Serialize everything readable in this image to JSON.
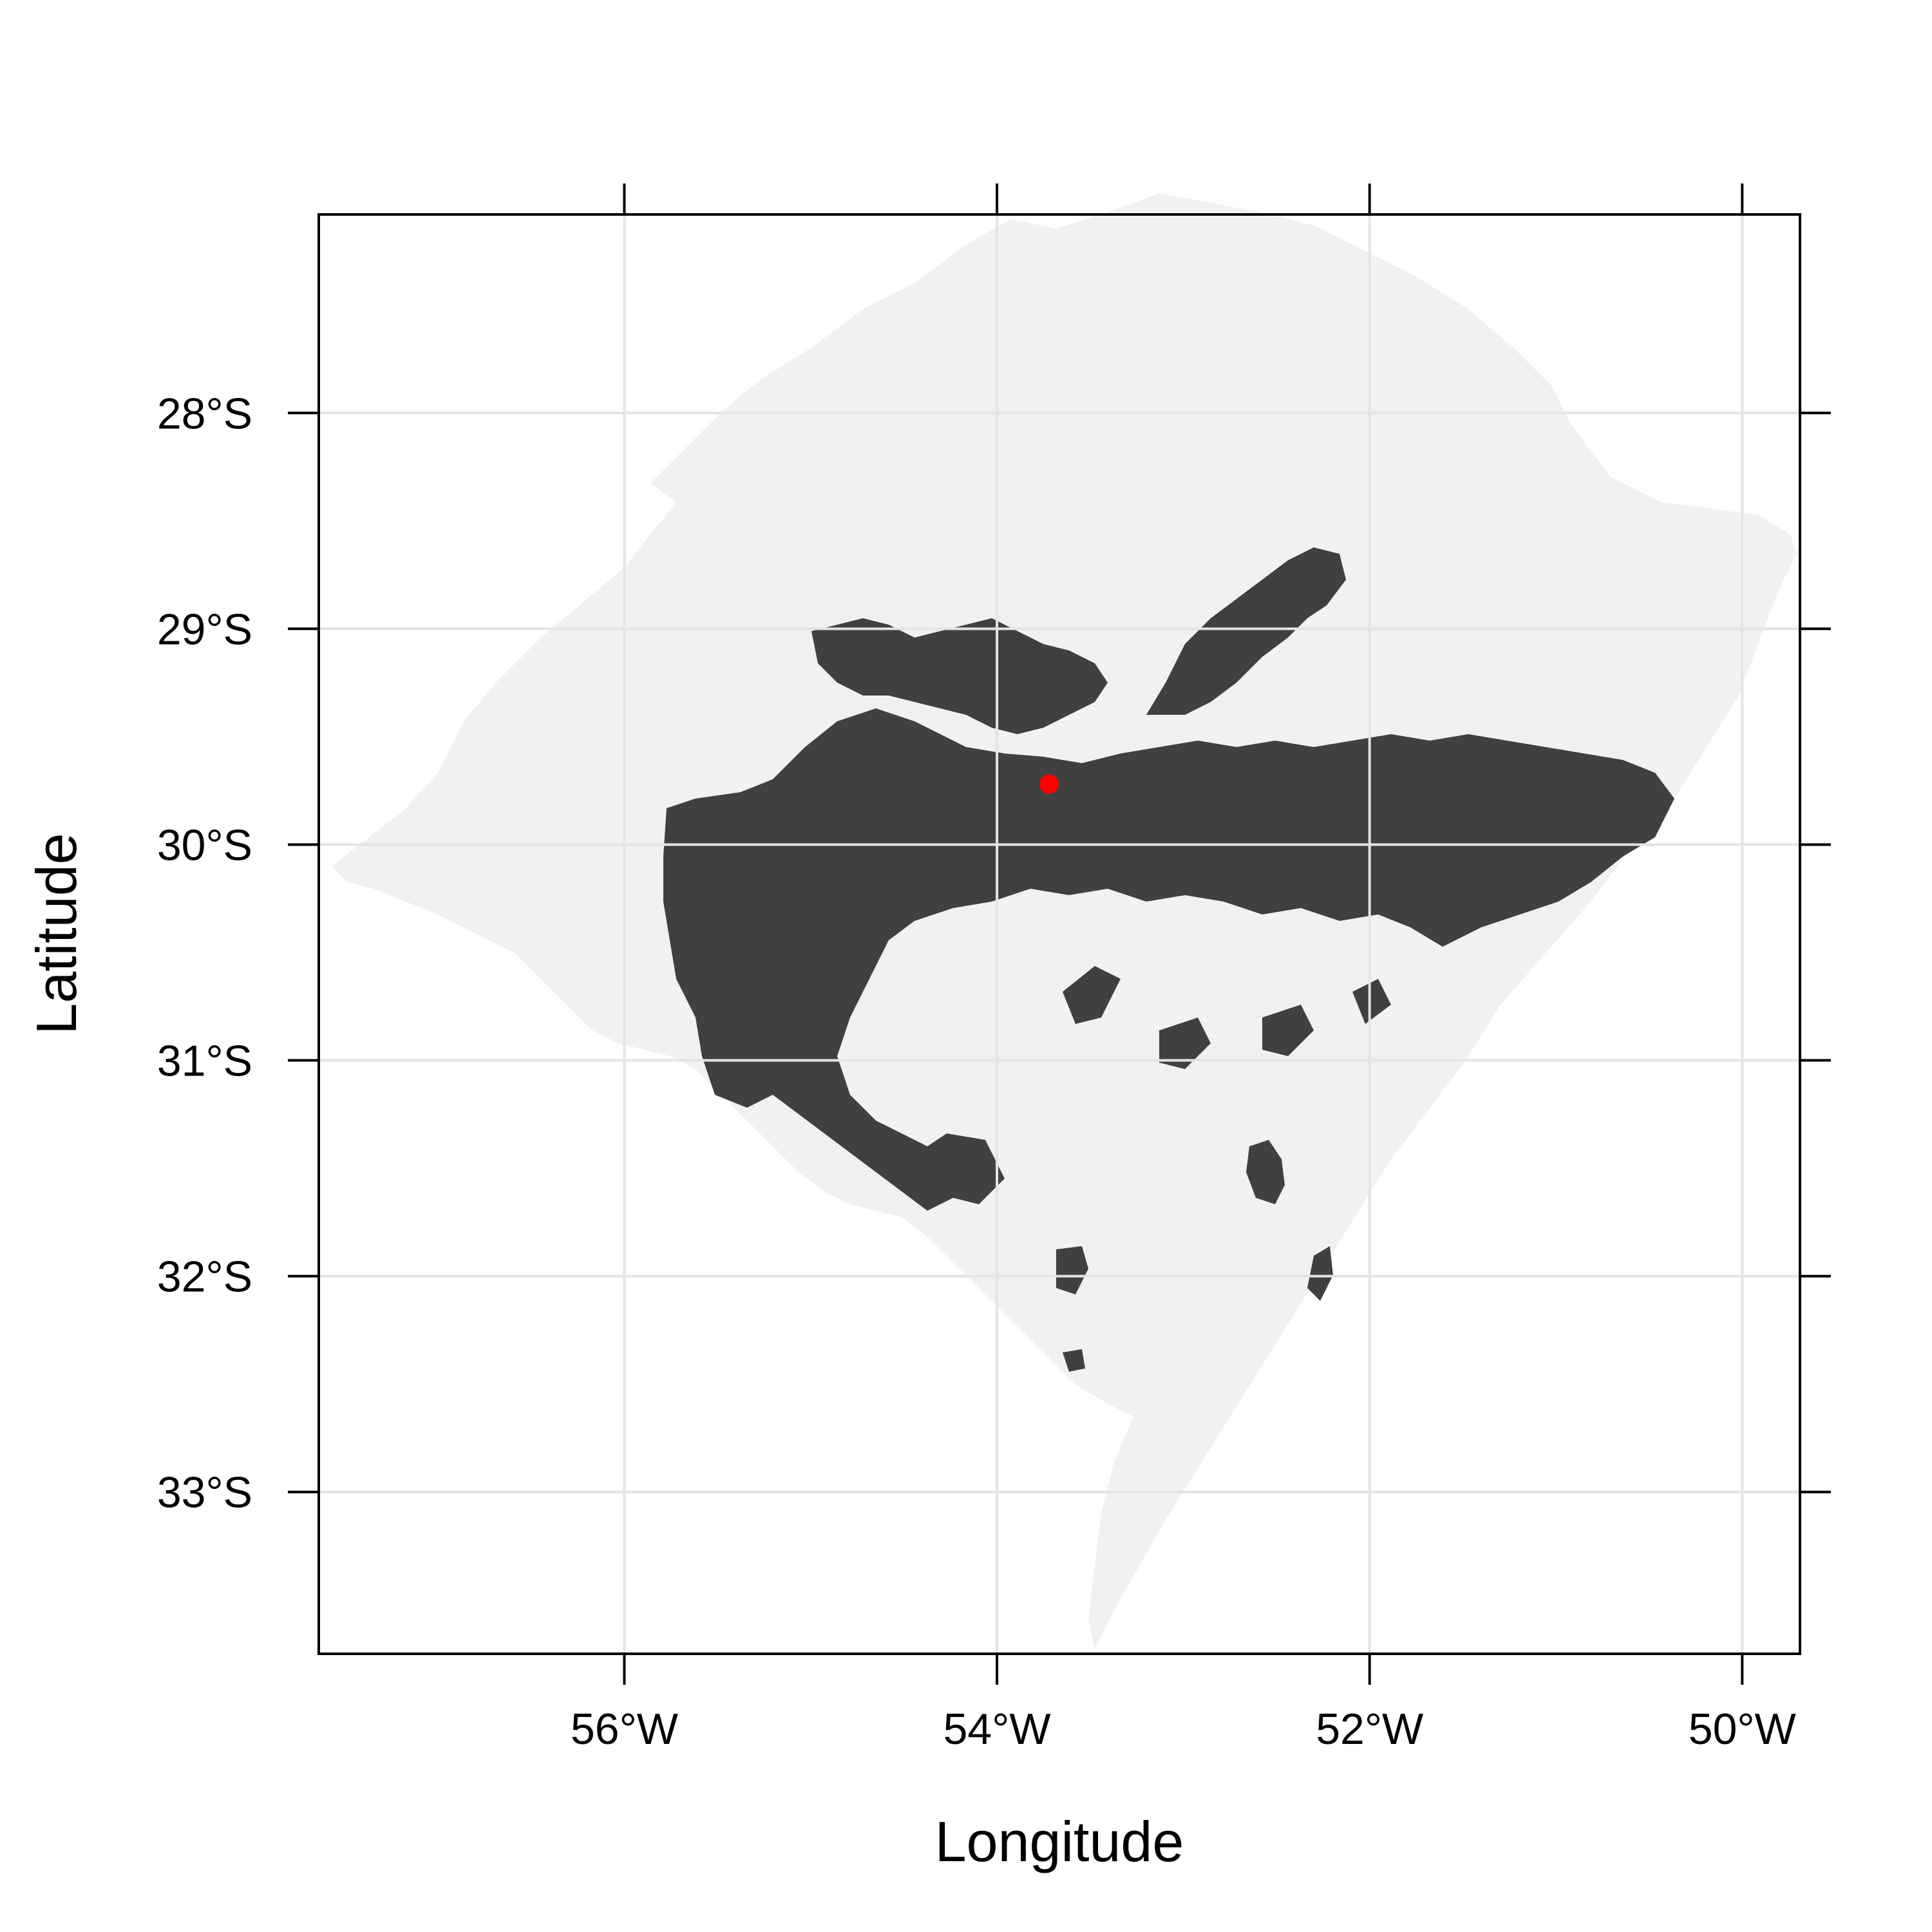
{
  "map": {
    "x_label": "Longitude",
    "y_label": "Latitude",
    "x_ticks": [
      {
        "value": -56,
        "label": "56°W"
      },
      {
        "value": -54,
        "label": "54°W"
      },
      {
        "value": -52,
        "label": "52°W"
      },
      {
        "value": -50,
        "label": "50°W"
      }
    ],
    "y_ticks": [
      {
        "value": -28,
        "label": "28°S"
      },
      {
        "value": -29,
        "label": "29°S"
      },
      {
        "value": -30,
        "label": "30°S"
      },
      {
        "value": -31,
        "label": "31°S"
      },
      {
        "value": -32,
        "label": "32°S"
      },
      {
        "value": -33,
        "label": "33°S"
      }
    ],
    "x_range": [
      -57.64,
      -49.69
    ],
    "y_range": [
      -33.75,
      -27.08
    ],
    "grid": true,
    "land_color": "#f1f1f1",
    "highlight_color": "#404040",
    "grid_color": "#e4e4e4",
    "marker": {
      "lon": -53.72,
      "lat": -29.72,
      "color": "#ff0000"
    }
  }
}
